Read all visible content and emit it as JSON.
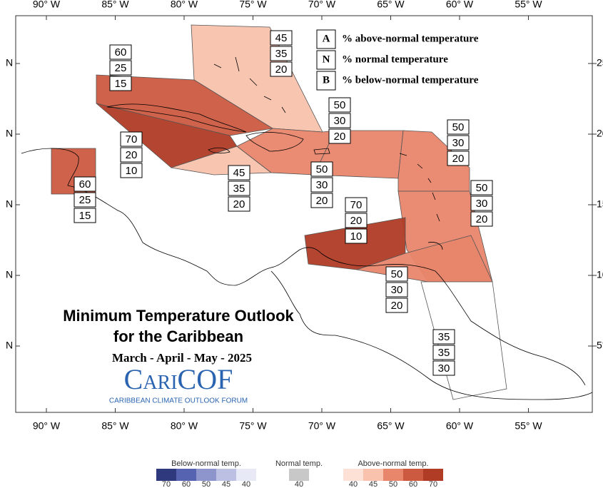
{
  "axes": {
    "lon_labels": [
      "90° W",
      "85° W",
      "80° W",
      "75° W",
      "70° W",
      "65° W",
      "60° W",
      "55° W"
    ],
    "lat_labels_left": [
      "N",
      "N",
      "N",
      "N",
      "N"
    ],
    "lat_labels_right": [
      "25",
      "20",
      "15",
      "10",
      "5°"
    ]
  },
  "title": [
    "Minimum Temperature Outlook",
    "for the Caribbean"
  ],
  "season": "March - April - May - 2025",
  "logo": {
    "name": "CariCOF",
    "tagline": "CARIBBEAN CLIMATE OUTLOOK FORUM"
  },
  "key": [
    {
      "letter": "A",
      "text": "% above-normal temperature"
    },
    {
      "letter": "N",
      "text": "% normal temperature"
    },
    {
      "letter": "B",
      "text": "% below-normal temperature"
    }
  ],
  "regions": [
    {
      "a": 45,
      "n": 35,
      "b": 20,
      "color": "#f8c2ad"
    },
    {
      "a": 60,
      "n": 25,
      "b": 15,
      "color": "#cb5a40"
    },
    {
      "a": 70,
      "n": 20,
      "b": 10,
      "color": "#b03c26"
    },
    {
      "a": 45,
      "n": 35,
      "b": 20,
      "color": "#f8c2ad"
    },
    {
      "a": 60,
      "n": 25,
      "b": 15,
      "color": "#cb5a40"
    },
    {
      "a": 50,
      "n": 30,
      "b": 20,
      "color": "#e8866b"
    },
    {
      "a": 50,
      "n": 30,
      "b": 20,
      "color": "#e8866b"
    },
    {
      "a": 50,
      "n": 30,
      "b": 20,
      "color": "#e8866b"
    },
    {
      "a": 50,
      "n": 30,
      "b": 20,
      "color": "#e8866b"
    },
    {
      "a": 70,
      "n": 20,
      "b": 10,
      "color": "#b03c26"
    },
    {
      "a": 50,
      "n": 30,
      "b": 20,
      "color": "#e8866b"
    },
    {
      "a": 35,
      "n": 35,
      "b": 30,
      "color": "#ffffff"
    }
  ],
  "scale": [
    {
      "title": "Below-normal temp.",
      "items": [
        {
          "value": 70,
          "color": "#2f3a7e"
        },
        {
          "value": 60,
          "color": "#5663b0"
        },
        {
          "value": 50,
          "color": "#8d95cc"
        },
        {
          "value": 45,
          "color": "#bcc1e4"
        },
        {
          "value": 40,
          "color": "#e7e9f6"
        }
      ]
    },
    {
      "title": "Normal temp.",
      "items": [
        {
          "value": 40,
          "color": "#c8c8c8"
        }
      ]
    },
    {
      "title": "Above-normal temp.",
      "items": [
        {
          "value": 40,
          "color": "#fde1d6"
        },
        {
          "value": 45,
          "color": "#f8c2ad"
        },
        {
          "value": 50,
          "color": "#e8866b"
        },
        {
          "value": 60,
          "color": "#cb5a40"
        },
        {
          "value": 70,
          "color": "#b03c26"
        }
      ]
    }
  ]
}
